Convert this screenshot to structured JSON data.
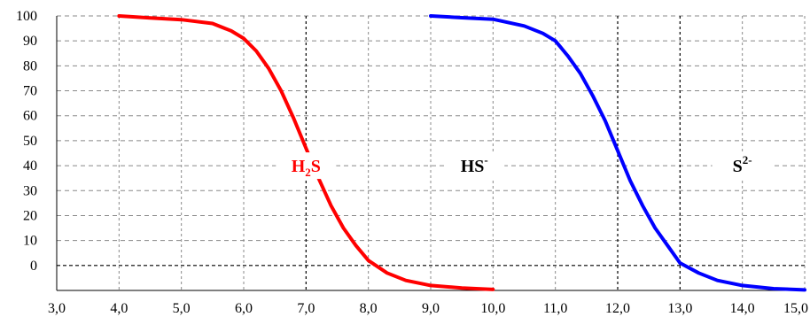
{
  "chart_data": {
    "type": "line",
    "title": "",
    "xlabel": "",
    "ylabel": "",
    "xlim": [
      3.0,
      15.0
    ],
    "ylim": [
      -10,
      100
    ],
    "x_ticks": [
      "3,0",
      "4,0",
      "5,0",
      "6,0",
      "7,0",
      "8,0",
      "9,0",
      "10,0",
      "11,0",
      "12,0",
      "13,0",
      "14,0",
      "15,0"
    ],
    "y_ticks": [
      "100",
      "90",
      "80",
      "70",
      "60",
      "50",
      "40",
      "30",
      "20",
      "10",
      "0"
    ],
    "grid": true,
    "series": [
      {
        "color": "#ff0000",
        "x": [
          4.0,
          4.5,
          5.0,
          5.5,
          5.8,
          6.0,
          6.2,
          6.4,
          6.6,
          6.8,
          7.0,
          7.2,
          7.4,
          7.6,
          7.8,
          8.0,
          8.3,
          8.6,
          9.0,
          9.5,
          10.0
        ],
        "y": [
          100,
          99.2,
          98.5,
          97,
          94,
          91,
          86,
          79,
          70,
          59,
          47,
          35,
          24,
          15,
          8,
          2,
          -3,
          -6,
          -8,
          -9,
          -9.6
        ]
      },
      {
        "color": "#0000ff",
        "x": [
          9.0,
          9.5,
          10.0,
          10.5,
          10.8,
          11.0,
          11.2,
          11.4,
          11.6,
          11.8,
          12.0,
          12.2,
          12.4,
          12.6,
          12.8,
          13.0,
          13.3,
          13.6,
          14.0,
          14.5,
          15.0
        ],
        "y": [
          100,
          99.3,
          98.7,
          96,
          93,
          90,
          84,
          77,
          68,
          58,
          46,
          34,
          24,
          15,
          8,
          1,
          -3,
          -6,
          -8,
          -9.3,
          -9.8
        ]
      }
    ],
    "annotations": [
      {
        "label": "H",
        "sub": "2",
        "suffix": "S",
        "x": 7.0,
        "y": 40,
        "color": "#ff0000"
      },
      {
        "label": "HS",
        "sup": "-",
        "suffix": "",
        "x": 9.7,
        "y": 40,
        "color": "#000000"
      },
      {
        "label": "S",
        "sup": "2-",
        "suffix": "",
        "x": 14.0,
        "y": 40,
        "color": "#000000"
      }
    ]
  }
}
